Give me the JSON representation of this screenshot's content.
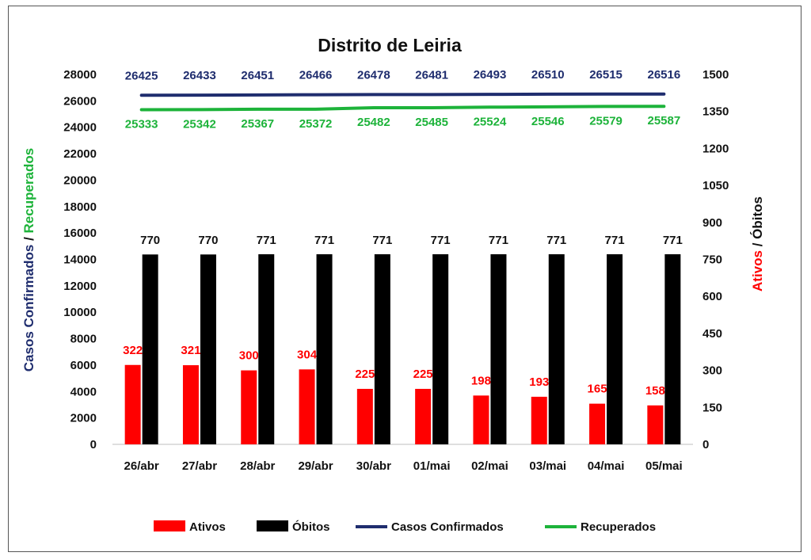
{
  "chart_data": {
    "type": "bar",
    "title": "Distrito de Leiria",
    "categories": [
      "26/abr",
      "27/abr",
      "28/abr",
      "29/abr",
      "30/abr",
      "01/mai",
      "02/mai",
      "03/mai",
      "04/mai",
      "05/mai"
    ],
    "left_axis": {
      "title_parts": [
        {
          "text": "Casos Confirmados",
          "color": "#1f2d6e"
        },
        {
          "text": " / ",
          "color": "#111111"
        },
        {
          "text": "Recuperados",
          "color": "#1db33a"
        }
      ],
      "ylim": [
        0,
        28000
      ],
      "ticks": [
        0,
        2000,
        4000,
        6000,
        8000,
        10000,
        12000,
        14000,
        16000,
        18000,
        20000,
        22000,
        24000,
        26000,
        28000
      ]
    },
    "right_axis": {
      "title_parts": [
        {
          "text": "Ativos",
          "color": "#ff0000"
        },
        {
          "text": " / ",
          "color": "#111111"
        },
        {
          "text": "Óbitos",
          "color": "#111111"
        }
      ],
      "ylim": [
        0,
        1500
      ],
      "ticks": [
        0,
        150,
        300,
        450,
        600,
        750,
        900,
        1050,
        1200,
        1350,
        1500
      ]
    },
    "series": [
      {
        "name": "Ativos",
        "kind": "bar",
        "axis": "right",
        "color": "#ff0000",
        "label_color": "#ff0000",
        "values": [
          322,
          321,
          300,
          304,
          225,
          225,
          198,
          193,
          165,
          158
        ]
      },
      {
        "name": "Óbitos",
        "kind": "bar",
        "axis": "right",
        "color": "#000000",
        "label_color": "#111111",
        "values": [
          770,
          770,
          771,
          771,
          771,
          771,
          771,
          771,
          771,
          771
        ]
      },
      {
        "name": "Casos Confirmados",
        "kind": "line",
        "axis": "left",
        "color": "#1f2d6e",
        "label_color": "#1f2d6e",
        "values": [
          26425,
          26433,
          26451,
          26466,
          26478,
          26481,
          26493,
          26510,
          26515,
          26516
        ]
      },
      {
        "name": "Recuperados",
        "kind": "line",
        "axis": "left",
        "color": "#1db33a",
        "label_color": "#1db33a",
        "values": [
          25333,
          25342,
          25367,
          25372,
          25482,
          25485,
          25524,
          25546,
          25579,
          25587
        ]
      }
    ],
    "grid": false,
    "legend_position": "bottom"
  }
}
